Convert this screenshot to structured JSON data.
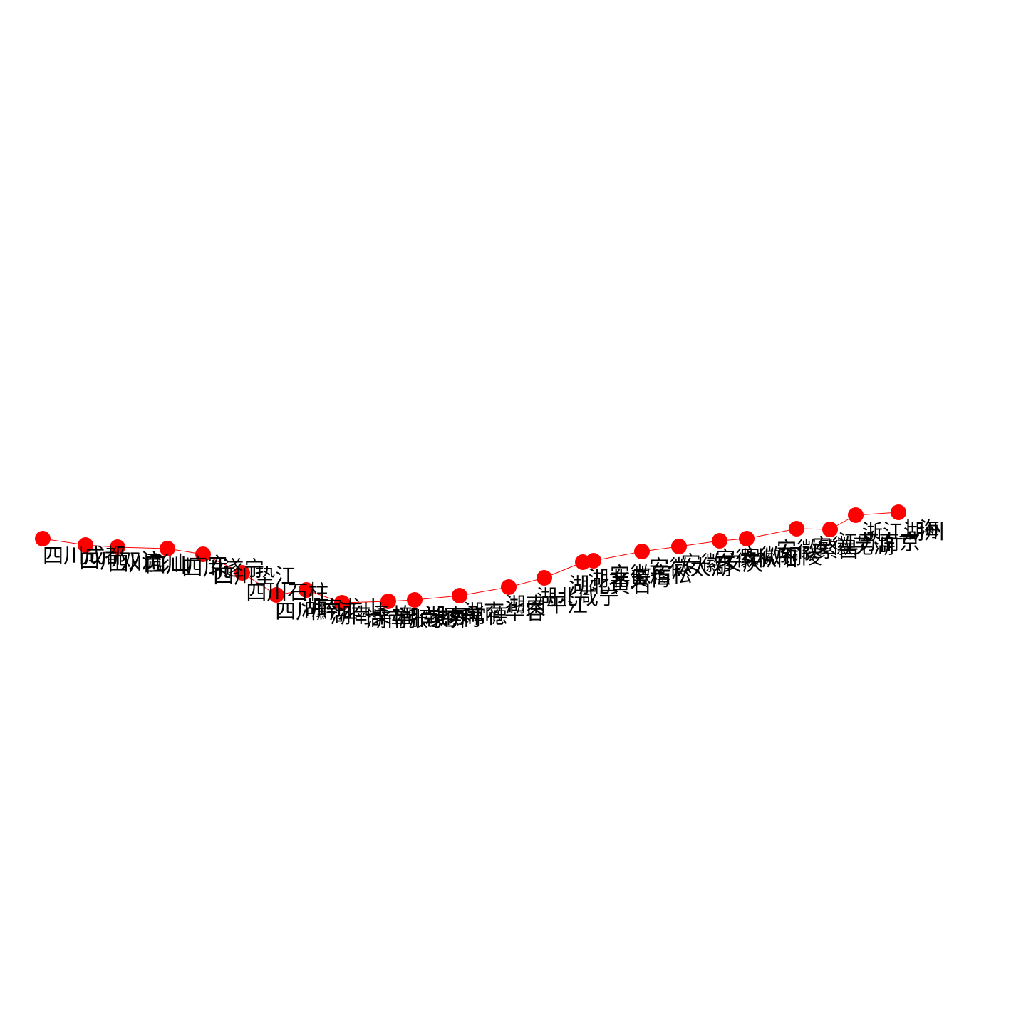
{
  "colors": {
    "node": "#ff0000",
    "edge": "#ff0000",
    "label": "#000000",
    "background": "#ffffff"
  },
  "nodes": [
    {
      "id": "n1",
      "label": "四川成都"
    },
    {
      "id": "n2",
      "label": "四川双流"
    },
    {
      "id": "n3",
      "label": "四川彭山"
    },
    {
      "id": "n4",
      "label": "四川广安"
    },
    {
      "id": "n5",
      "label": "四川遂宁"
    },
    {
      "id": "n6",
      "label": "四川垫江"
    },
    {
      "id": "n7",
      "label": "四川石柱"
    },
    {
      "id": "n8",
      "label": "四川黔江"
    },
    {
      "id": "n9",
      "label": "湖南龙山"
    },
    {
      "id": "n10",
      "label": "湖南桑植"
    },
    {
      "id": "n11",
      "label": "湖南张家界"
    },
    {
      "id": "n12",
      "label": "湖南慈利"
    },
    {
      "id": "n13",
      "label": "湖南常德"
    },
    {
      "id": "n14",
      "label": "湖南华容"
    },
    {
      "id": "n15",
      "label": "湖南平江"
    },
    {
      "id": "n16",
      "label": "湖北咸宁"
    },
    {
      "id": "n17",
      "label": "湖北黄石"
    },
    {
      "id": "n18",
      "label": "湖北黄梅"
    },
    {
      "id": "n19",
      "label": "安徽宿松"
    },
    {
      "id": "n20",
      "label": "安徽太湖"
    },
    {
      "id": "n21",
      "label": "安徽安庆"
    },
    {
      "id": "n22",
      "label": "安徽枞阳"
    },
    {
      "id": "n23",
      "label": "安徽铜陵"
    },
    {
      "id": "n24",
      "label": "安徽繁昌"
    },
    {
      "id": "n25",
      "label": "安徽芜湖"
    },
    {
      "id": "n26",
      "label": "江苏南京"
    },
    {
      "id": "n27",
      "label": "浙江湖州"
    },
    {
      "id": "n28",
      "label": "上海"
    }
  ]
}
